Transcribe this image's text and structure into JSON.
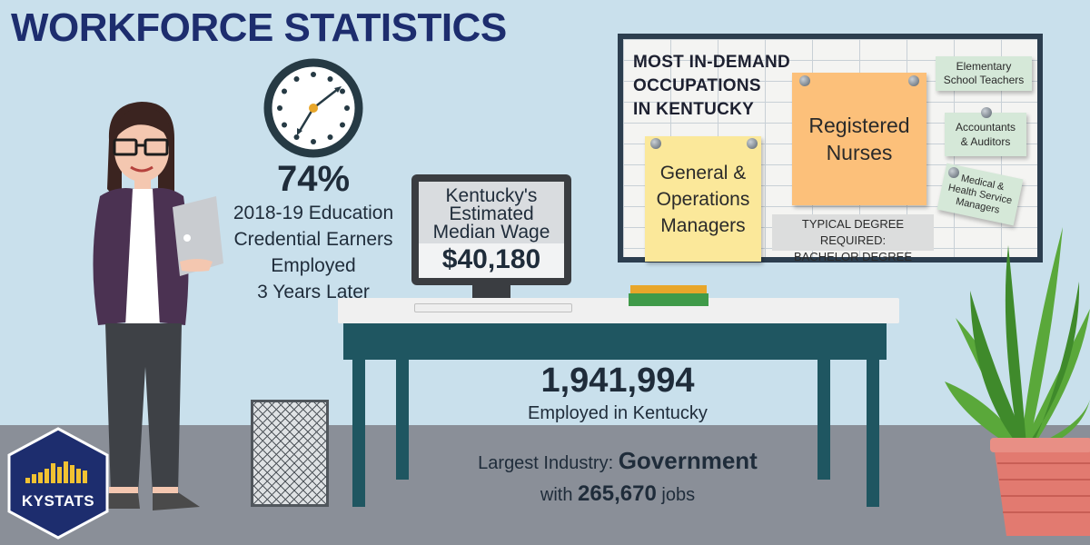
{
  "title": "WORKFORCE STATISTICS",
  "credential_stat": {
    "value": "74%",
    "line1": "2018-19 Education",
    "line2": "Credential Earners",
    "line3": "Employed",
    "line4": "3 Years Later"
  },
  "monitor": {
    "line1": "Kentucky's",
    "line2": "Estimated",
    "line3": "Median Wage",
    "value": "$40,180"
  },
  "board": {
    "title_line1": "MOST IN-DEMAND",
    "title_line2": "OCCUPATIONS",
    "title_line3": "IN KENTUCKY",
    "note_nurses_line1": "Registered",
    "note_nurses_line2": "Nurses",
    "note_managers_line1": "General &",
    "note_managers_line2": "Operations",
    "note_managers_line3": "Managers",
    "note_teachers_line1": "Elementary",
    "note_teachers_line2": "School Teachers",
    "note_accountants_line1": "Accountants",
    "note_accountants_line2": "& Auditors",
    "note_medical_line1": "Medical &",
    "note_medical_line2": "Health Service",
    "note_medical_line3": "Managers",
    "degree_line1": "TYPICAL DEGREE REQUIRED:",
    "degree_line2": "BACHELOR DEGREE"
  },
  "employment": {
    "value": "1,941,994",
    "label": "Employed in Kentucky",
    "industry_prefix": "Largest Industry:",
    "industry_name": "Government",
    "jobs_prefix": "with",
    "jobs_value": "265,670",
    "jobs_suffix": "jobs"
  },
  "logo": {
    "text": "KYSTATS"
  },
  "colors": {
    "background": "#c9e0ec",
    "title": "#1d2d6e",
    "desk": "#1f5661",
    "floor": "#8a8f98",
    "sticky_yellow": "#fbe89a",
    "sticky_orange": "#fcc07a",
    "sticky_green": "#d5e8d8"
  },
  "icons": [
    "clock-icon",
    "woman-illustration",
    "plant-illustration",
    "trash-can-icon",
    "laptop-icon",
    "monitor-icon"
  ]
}
